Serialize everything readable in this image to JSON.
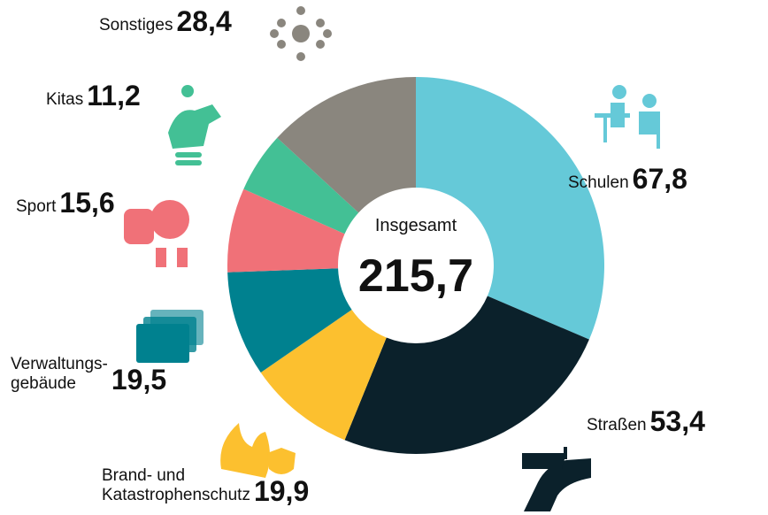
{
  "chart_data": {
    "type": "donut",
    "categories": [
      "Schulen",
      "Straßen",
      "Brand- und\nKatastrophenschutz",
      "Verwaltungs-\ngebäude",
      "Sport",
      "Kitas",
      "Sonstiges"
    ],
    "values": [
      67.8,
      53.4,
      19.9,
      19.5,
      15.6,
      11.2,
      28.4
    ],
    "value_labels": [
      "67,8",
      "53,4",
      "19,9",
      "19,5",
      "15,6",
      "11,2",
      "28,4"
    ],
    "colors": [
      "#65c9d8",
      "#0b212b",
      "#fcc02f",
      "#00818f",
      "#f07178",
      "#43c095",
      "#8a867e"
    ],
    "center_title": "Insgesamt",
    "total": {
      "value": 215.7,
      "label": "215,7"
    }
  }
}
